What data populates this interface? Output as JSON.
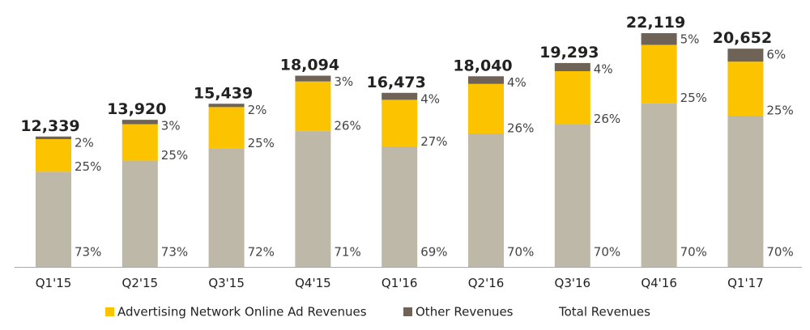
{
  "chart_data": {
    "type": "bar",
    "stacked": true,
    "categories": [
      "Q1'15",
      "Q2'15",
      "Q3'15",
      "Q4'15",
      "Q1'16",
      "Q2'16",
      "Q3'16",
      "Q4'16",
      "Q1'17"
    ],
    "totals": [
      12339,
      13920,
      15439,
      18094,
      16473,
      18040,
      19293,
      22119,
      20652
    ],
    "total_labels": [
      "12,339",
      "13,920",
      "15,439",
      "18,094",
      "16,473",
      "18,040",
      "19,293",
      "22,119",
      "20,652"
    ],
    "series": [
      {
        "name": "",
        "color": "#bdb8a8",
        "share_labels": [
          "73%",
          "73%",
          "72%",
          "71%",
          "69%",
          "70%",
          "70%",
          "70%",
          "70%"
        ],
        "share": [
          73,
          73,
          72,
          71,
          69,
          70,
          70,
          70,
          70
        ]
      },
      {
        "name": "Advertising Network Online Ad Revenues",
        "color": "#fcc400",
        "share_labels": [
          "25%",
          "25%",
          "25%",
          "26%",
          "27%",
          "26%",
          "26%",
          "25%",
          "25%"
        ],
        "share": [
          25,
          25,
          25,
          26,
          27,
          26,
          26,
          25,
          25
        ]
      },
      {
        "name": "Other Revenues",
        "color": "#6e6356",
        "share_labels": [
          "2%",
          "3%",
          "2%",
          "3%",
          "4%",
          "4%",
          "4%",
          "5%",
          "6%"
        ],
        "share": [
          2,
          3,
          2,
          3,
          4,
          4,
          4,
          5,
          6
        ]
      }
    ],
    "legend": {
      "placement": "bottom",
      "items": [
        {
          "label": "Advertising Network Online Ad Revenues",
          "color": "#fcc400",
          "marker": "square"
        },
        {
          "label": "Other Revenues",
          "color": "#6e6356",
          "marker": "square"
        },
        {
          "label": "Total Revenues",
          "color": "",
          "marker": "none"
        }
      ]
    },
    "ylim": [
      0,
      22119
    ],
    "grid": false,
    "baseline_color": "#aaaaaa"
  }
}
